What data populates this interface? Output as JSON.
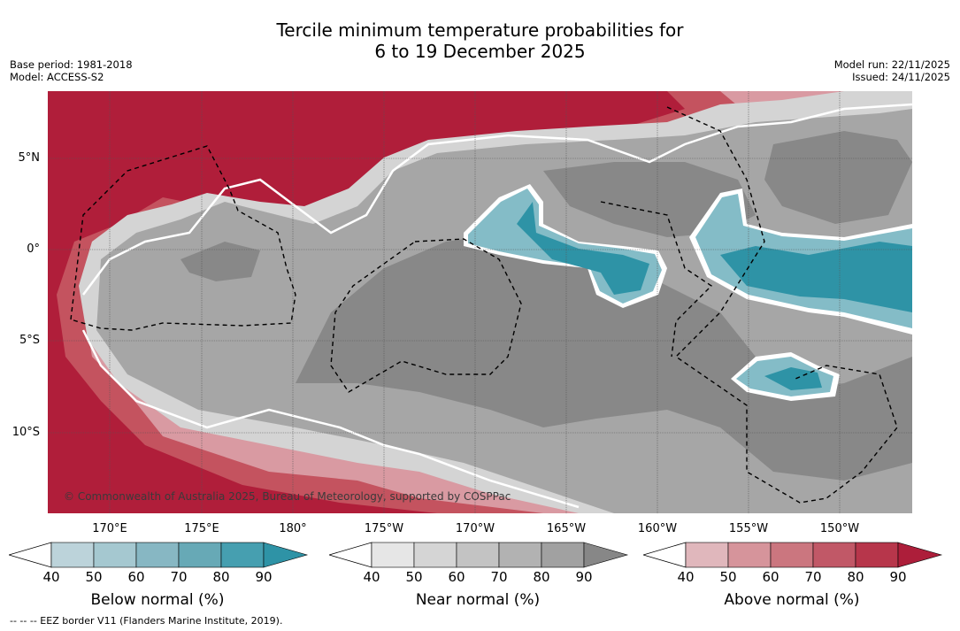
{
  "header": {
    "title_line1": "Tercile minimum temperature probabilities for",
    "title_line2": "6 to 19 December 2025",
    "base_period": "Base period: 1981-2018",
    "model": "Model: ACCESS-S2",
    "model_run": "Model run: 22/11/2025",
    "issued": "Issued: 24/11/2025"
  },
  "map": {
    "lat_labels": [
      "5°N",
      "0°",
      "5°S",
      "10°S"
    ],
    "lon_labels": [
      "170°E",
      "175°E",
      "180°",
      "175°W",
      "170°W",
      "165°W",
      "160°W",
      "155°W",
      "150°W"
    ],
    "copyright": "© Commonwealth of Australia 2025, Bureau of Meteorology, supported by COSPPac"
  },
  "colorbars": {
    "below": {
      "title": "Below normal (%)",
      "ticks": [
        "40",
        "50",
        "60",
        "70",
        "80",
        "90"
      ],
      "colors": [
        "#bcd3da",
        "#a5c8d0",
        "#87b7c3",
        "#67a9b6",
        "#469fb0",
        "#2e93a6"
      ]
    },
    "near": {
      "title": "Near normal (%)",
      "ticks": [
        "40",
        "50",
        "60",
        "70",
        "80",
        "90"
      ],
      "colors": [
        "#e6e6e6",
        "#d5d5d5",
        "#c3c3c3",
        "#b2b2b2",
        "#a1a1a1",
        "#878787"
      ]
    },
    "above": {
      "title": "Above normal (%)",
      "ticks": [
        "40",
        "50",
        "60",
        "70",
        "80",
        "90"
      ],
      "colors": [
        "#e0b7bc",
        "#d6949b",
        "#cb767f",
        "#c15867",
        "#b7364b",
        "#ad1e3a"
      ]
    }
  },
  "footnote": "--  --  -- EEZ border V11 (Flanders Marine Institute, 2019).",
  "colors": {
    "gray_light": "#d4d4d4",
    "gray_mid": "#a6a6a6",
    "gray_dark": "#888888",
    "teal": "#2e93a6",
    "teal_light": "#84bcc7",
    "red_dark": "#b01e3a",
    "red_mid": "#c4535f",
    "red_light": "#d99aa2"
  }
}
